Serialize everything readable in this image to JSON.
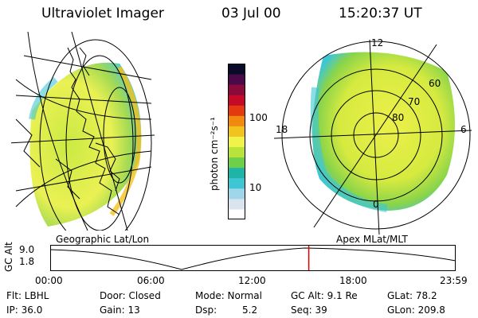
{
  "header": {
    "instrument": "Ultraviolet Imager",
    "date": "03 Jul 00",
    "time": "15:20:37 UT"
  },
  "colorbar": {
    "unit_label": "photon cm⁻²s⁻¹",
    "tick_100": "100",
    "tick_10": "10",
    "colors": [
      "#ffffff",
      "#d9e4ee",
      "#9fd6ea",
      "#3fc6d4",
      "#1fb4a8",
      "#6ecf4a",
      "#b8e33a",
      "#f1f24a",
      "#f2c21e",
      "#f28a10",
      "#e33a10",
      "#c40a26",
      "#8a0a3a",
      "#4a0a4a",
      "#0a0a2a"
    ]
  },
  "left_panel": {
    "caption": "Geographic Lat/Lon"
  },
  "right_panel": {
    "caption": "Apex  MLat/MLT",
    "labels": {
      "mlt_12": "12",
      "mlt_18": "18",
      "mlt_6": "6",
      "mlt_0": "0",
      "lat_60": "60",
      "lat_70": "70",
      "lat_80": "80"
    }
  },
  "timeline": {
    "axis_label": "GC Alt",
    "y_top": "9.0",
    "y_bottom": "1.8",
    "ticks": [
      "00:00",
      "06:00",
      "12:00",
      "18:00",
      "23:59"
    ],
    "current_fraction": 0.639,
    "marker_color": "#e00000"
  },
  "info": {
    "row1": {
      "filter": "Flt: LBHL",
      "door": "Door: Closed",
      "mode": "Mode: Normal",
      "gcalt": "GC Alt: 9.1 Re",
      "glat": "GLat:  78.2"
    },
    "row2": {
      "ip": "IP: 36.0",
      "gain": "Gain: 13",
      "dsp_label": "Dsp:",
      "dsp_value": "5.2",
      "seq": "Seq: 39",
      "glon": "GLon: 209.8"
    }
  }
}
